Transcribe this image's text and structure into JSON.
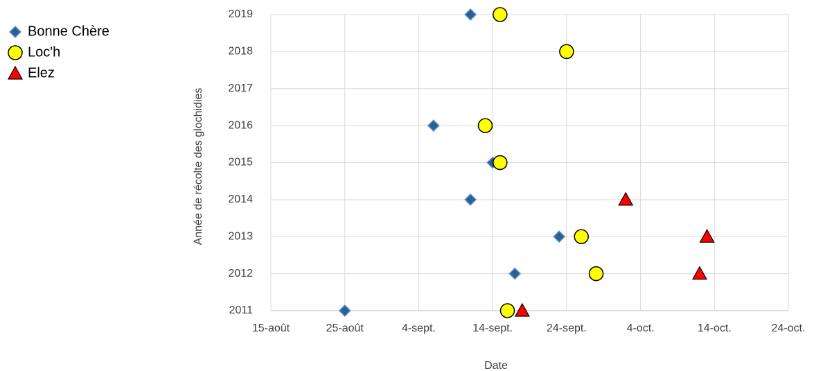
{
  "chart_data": {
    "type": "scatter",
    "x_label": "Date",
    "y_label": "Année de récolte des glochidies",
    "xlim": [
      227,
      297
    ],
    "xticks": [
      {
        "value": 227,
        "label": "15-août"
      },
      {
        "value": 237,
        "label": "25-août"
      },
      {
        "value": 247,
        "label": "4-sept."
      },
      {
        "value": 257,
        "label": "14-sept."
      },
      {
        "value": 267,
        "label": "24-sept."
      },
      {
        "value": 277,
        "label": "4-oct."
      },
      {
        "value": 287,
        "label": "14-oct."
      },
      {
        "value": 297,
        "label": "24-oct."
      }
    ],
    "ylim": [
      2011,
      2019
    ],
    "yticks": [
      2011,
      2012,
      2013,
      2014,
      2015,
      2016,
      2017,
      2018,
      2019
    ],
    "grid": true,
    "legend": "left",
    "series": [
      {
        "name": "Bonne Chère",
        "color": "#2e5f8e",
        "marker": "diamond",
        "x": [
          254,
          249,
          257,
          254,
          266,
          260,
          237
        ],
        "values": [
          2019,
          2016,
          2015,
          2014,
          2013,
          2012,
          2011
        ]
      },
      {
        "name": "Loc'h",
        "color": "#ffff00",
        "marker": "circle",
        "x": [
          258,
          267,
          256,
          258,
          269,
          271,
          259
        ],
        "values": [
          2019,
          2018,
          2016,
          2015,
          2013,
          2012,
          2011
        ]
      },
      {
        "name": "Elez",
        "color": "#ff0000",
        "marker": "triangle",
        "x": [
          275,
          286,
          285,
          261
        ],
        "values": [
          2014,
          2013,
          2012,
          2011
        ]
      }
    ]
  }
}
